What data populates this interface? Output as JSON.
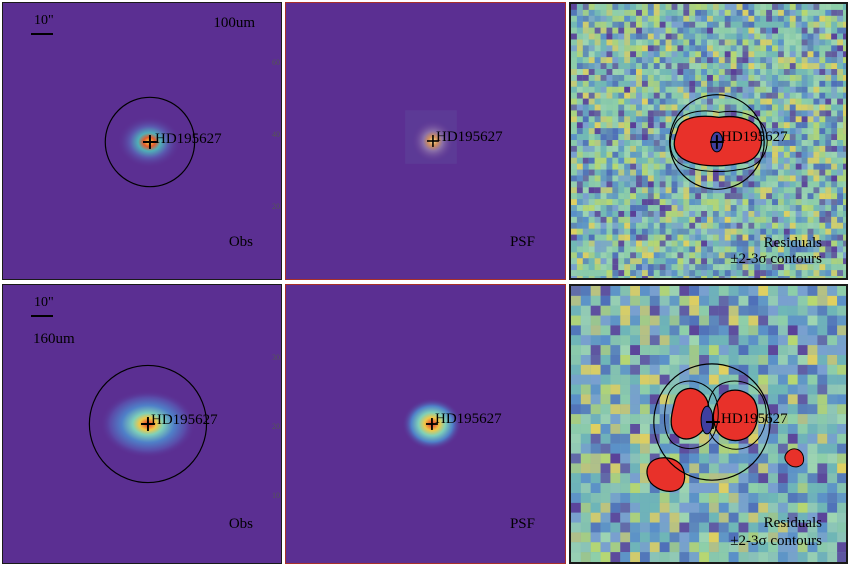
{
  "rows": [
    {
      "band_label": "100um",
      "scale_label": "10\"",
      "panels": [
        {
          "type": "obs",
          "label": "Obs",
          "target": "HD195627"
        },
        {
          "type": "psf",
          "label": "PSF",
          "target": "HD195627"
        },
        {
          "type": "residuals",
          "label": "Residuals",
          "sublabel": "±2-3σ contours",
          "target": "HD195627"
        }
      ],
      "axis_ticks": [
        "60",
        "40",
        "20"
      ]
    },
    {
      "band_label": "160um",
      "scale_label": "10\"",
      "panels": [
        {
          "type": "obs",
          "label": "Obs",
          "target": "HD195627"
        },
        {
          "type": "psf",
          "label": "PSF",
          "target": "HD195627"
        },
        {
          "type": "residuals",
          "label": "Residuals",
          "sublabel": "±2-3σ contours",
          "target": "HD195627"
        }
      ],
      "axis_ticks": [
        "30",
        "20",
        "10"
      ]
    }
  ],
  "colors": {
    "background": "#5b2f92",
    "residual_bg": "#7fc0b0",
    "hot": "#e8312a",
    "contour": "#000000",
    "frame_row1_red": "#b3312a"
  }
}
